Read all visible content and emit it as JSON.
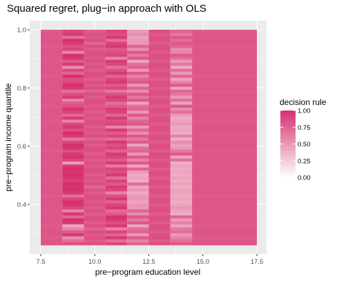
{
  "chart_data": {
    "type": "heatmap",
    "title": "Squared regret, plug−in approach with OLS",
    "xlabel": "pre−program education level",
    "ylabel": "pre−program income quantile",
    "xlim": [
      7.5,
      17.5
    ],
    "ylim": [
      0.26,
      1.0
    ],
    "x_ticks": [
      7.5,
      10.0,
      12.5,
      15.0,
      17.5
    ],
    "x_tick_labels": [
      "7.5",
      "10.0",
      "12.5",
      "15.0",
      "17.5"
    ],
    "y_ticks": [
      0.4,
      0.6,
      0.8,
      1.0
    ],
    "y_tick_labels": [
      "0.4",
      "0.6",
      "0.8",
      "1.0"
    ],
    "x_columns": [
      {
        "x0": 7.5,
        "x1": 8.5
      },
      {
        "x0": 8.5,
        "x1": 9.5
      },
      {
        "x0": 9.5,
        "x1": 10.5
      },
      {
        "x0": 10.5,
        "x1": 11.5
      },
      {
        "x0": 11.5,
        "x1": 12.5
      },
      {
        "x0": 12.5,
        "x1": 13.5
      },
      {
        "x0": 13.5,
        "x1": 14.5
      },
      {
        "x0": 14.5,
        "x1": 17.5
      }
    ],
    "row_count": 72,
    "column_values": [
      [
        0.82,
        0.82,
        0.8,
        0.82,
        0.82,
        0.82,
        0.8,
        0.82,
        0.82,
        0.82,
        0.82,
        0.8,
        0.82,
        0.82,
        0.82,
        0.82,
        0.8,
        0.82,
        0.82,
        0.82,
        0.82,
        0.8,
        0.82,
        0.82,
        0.82,
        0.82,
        0.8,
        0.82,
        0.82,
        0.82,
        0.82,
        0.8,
        0.82,
        0.82,
        0.82,
        0.82,
        0.8,
        0.82,
        0.82,
        0.82,
        0.82,
        0.8,
        0.82,
        0.82,
        0.82,
        0.82,
        0.8,
        0.82,
        0.82,
        0.82,
        0.82,
        0.8,
        0.82,
        0.82,
        0.82,
        0.82,
        0.8,
        0.82,
        0.82,
        0.82,
        0.82,
        0.8,
        0.82,
        0.82,
        0.82,
        0.82,
        0.8,
        0.82,
        0.82,
        0.82,
        0.82,
        0.8
      ],
      [
        0.85,
        0.7,
        0.55,
        0.95,
        0.8,
        0.6,
        0.45,
        0.95,
        1.0,
        0.75,
        0.95,
        0.6,
        0.9,
        0.98,
        1.0,
        0.9,
        0.7,
        0.95,
        1.0,
        0.98,
        1.0,
        0.92,
        0.97,
        1.0,
        0.98,
        1.0,
        0.95,
        0.5,
        0.9,
        1.0,
        0.95,
        0.85,
        0.98,
        1.0,
        0.9,
        0.65,
        0.95,
        1.0,
        0.85,
        0.95,
        0.9,
        0.6,
        0.95,
        0.75,
        0.9,
        1.0,
        0.85,
        0.8,
        0.6,
        0.95,
        0.85,
        0.7,
        0.95,
        1.0,
        0.9,
        0.85,
        1.0,
        0.75,
        0.9,
        0.55,
        0.95,
        0.8,
        0.95,
        1.0,
        0.6,
        0.9,
        0.85,
        0.95,
        1.0,
        0.7,
        0.95,
        0.9
      ],
      [
        0.85,
        0.8,
        0.85,
        0.8,
        0.85,
        0.75,
        0.85,
        0.8,
        0.85,
        0.85,
        0.8,
        0.85,
        0.8,
        0.85,
        0.8,
        0.85,
        0.85,
        0.8,
        0.85,
        0.75,
        0.85,
        0.8,
        0.85,
        0.8,
        0.85,
        0.85,
        0.8,
        0.85,
        0.8,
        0.85,
        0.8,
        0.85,
        0.85,
        0.8,
        0.85,
        0.75,
        0.85,
        0.8,
        0.85,
        0.8,
        0.85,
        0.85,
        0.8,
        0.85,
        0.8,
        0.85,
        0.8,
        0.85,
        0.85,
        0.8,
        0.85,
        0.75,
        0.85,
        0.8,
        0.85,
        0.8,
        0.85,
        0.85,
        0.8,
        0.85,
        0.8,
        0.85,
        0.8,
        0.85,
        0.85,
        0.8,
        0.85,
        0.75,
        0.85,
        0.8,
        0.85,
        0.8
      ],
      [
        0.9,
        0.7,
        0.95,
        0.75,
        0.9,
        0.6,
        0.95,
        0.85,
        0.95,
        1.0,
        0.8,
        0.7,
        0.95,
        0.9,
        0.75,
        0.95,
        0.85,
        0.6,
        0.9,
        0.95,
        0.8,
        0.9,
        0.7,
        0.95,
        0.85,
        0.9,
        0.65,
        0.95,
        0.8,
        0.9,
        0.95,
        0.75,
        0.9,
        0.85,
        0.95,
        0.7,
        0.9,
        0.8,
        0.95,
        0.6,
        0.9,
        0.85,
        0.95,
        0.75,
        0.9,
        0.95,
        0.8,
        0.7,
        0.9,
        0.95,
        0.85,
        0.65,
        0.9,
        0.8,
        0.95,
        0.9,
        0.75,
        0.95,
        0.85,
        0.7,
        0.9,
        0.95,
        0.6,
        0.9,
        0.85,
        0.8,
        0.95,
        0.9,
        0.7,
        0.95,
        0.85,
        0.9
      ],
      [
        0.75,
        0.6,
        0.8,
        0.5,
        0.75,
        0.7,
        0.45,
        0.8,
        0.65,
        0.8,
        0.55,
        0.75,
        0.5,
        0.5,
        0.45,
        0.5,
        0.5,
        0.4,
        0.5,
        0.45,
        0.7,
        0.4,
        0.45,
        0.4,
        0.5,
        0.75,
        0.45,
        0.8,
        0.6,
        0.8,
        0.5,
        0.75,
        0.7,
        0.45,
        0.8,
        0.65,
        0.8,
        0.55,
        0.75,
        0.5,
        0.8,
        0.75,
        0.6,
        0.8,
        0.5,
        0.75,
        0.7,
        0.45,
        0.8,
        0.65,
        0.8,
        0.55,
        0.75,
        0.5,
        0.8,
        0.75,
        0.6,
        0.8,
        0.5,
        0.75,
        0.7,
        0.45,
        0.8,
        0.65,
        0.8,
        0.55,
        0.75,
        0.5,
        0.5,
        0.45,
        0.55,
        0.5
      ],
      [
        0.85,
        0.8,
        0.85,
        0.85,
        0.8,
        0.85,
        0.85,
        0.8,
        0.85,
        0.85,
        0.8,
        0.85,
        0.85,
        0.8,
        0.85,
        0.85,
        0.8,
        0.85,
        0.85,
        0.8,
        0.85,
        0.85,
        0.8,
        0.85,
        0.85,
        0.8,
        0.85,
        0.85,
        0.8,
        0.85,
        0.85,
        0.8,
        0.85,
        0.85,
        0.8,
        0.85,
        0.85,
        0.8,
        0.85,
        0.85,
        0.8,
        0.85,
        0.85,
        0.8,
        0.85,
        0.85,
        0.8,
        0.85,
        0.85,
        0.8,
        0.85,
        0.85,
        0.8,
        0.85,
        0.85,
        0.8,
        0.85,
        0.85,
        0.8,
        0.85,
        0.85,
        0.8,
        0.85,
        0.85,
        0.8,
        0.85,
        0.85,
        0.8,
        0.85,
        0.85,
        0.8,
        0.85
      ],
      [
        0.8,
        0.7,
        0.6,
        0.5,
        0.7,
        0.65,
        0.45,
        0.6,
        0.5,
        0.75,
        0.4,
        0.45,
        0.5,
        0.45,
        0.4,
        0.45,
        0.4,
        0.45,
        0.45,
        0.4,
        0.45,
        0.4,
        0.45,
        0.4,
        0.45,
        0.4,
        0.45,
        0.4,
        0.7,
        0.45,
        0.8,
        0.65,
        0.5,
        0.45,
        0.55,
        0.4,
        0.6,
        0.4,
        0.45,
        0.4,
        0.5,
        0.45,
        0.4,
        0.5,
        0.7,
        0.55,
        0.8,
        0.45,
        0.7,
        0.5,
        0.65,
        0.75,
        0.45,
        0.8,
        0.6,
        0.45,
        0.75,
        0.5,
        0.7,
        0.4,
        0.65,
        0.5,
        0.7,
        0.8,
        0.6,
        0.55,
        0.75,
        0.8,
        0.7,
        0.8,
        0.65,
        0.75
      ],
      [
        0.82,
        0.82,
        0.8,
        0.82,
        0.82,
        0.82,
        0.8,
        0.82,
        0.82,
        0.82,
        0.82,
        0.8,
        0.82,
        0.82,
        0.82,
        0.82,
        0.8,
        0.82,
        0.82,
        0.82,
        0.82,
        0.8,
        0.82,
        0.82,
        0.82,
        0.82,
        0.8,
        0.82,
        0.82,
        0.82,
        0.82,
        0.8,
        0.82,
        0.82,
        0.82,
        0.82,
        0.8,
        0.82,
        0.82,
        0.82,
        0.82,
        0.8,
        0.82,
        0.82,
        0.82,
        0.82,
        0.8,
        0.82,
        0.82,
        0.82,
        0.82,
        0.8,
        0.82,
        0.82,
        0.82,
        0.82,
        0.8,
        0.82,
        0.82,
        0.82,
        0.82,
        0.8,
        0.82,
        0.82,
        0.82,
        0.82,
        0.8,
        0.82,
        0.82,
        0.82,
        0.82,
        0.8
      ]
    ],
    "legend": {
      "title": "decision rule",
      "ticks": [
        1.0,
        0.75,
        0.5,
        0.25,
        0.0
      ],
      "tick_labels": [
        "1.00",
        "0.75",
        "0.50",
        "0.25",
        "0.00"
      ],
      "low_color": "#ffffff",
      "high_color": "#d6306f",
      "placement": "right"
    },
    "colors": {
      "panel_background": "#ebebeb",
      "grid": "#ffffff"
    },
    "grid": true
  }
}
